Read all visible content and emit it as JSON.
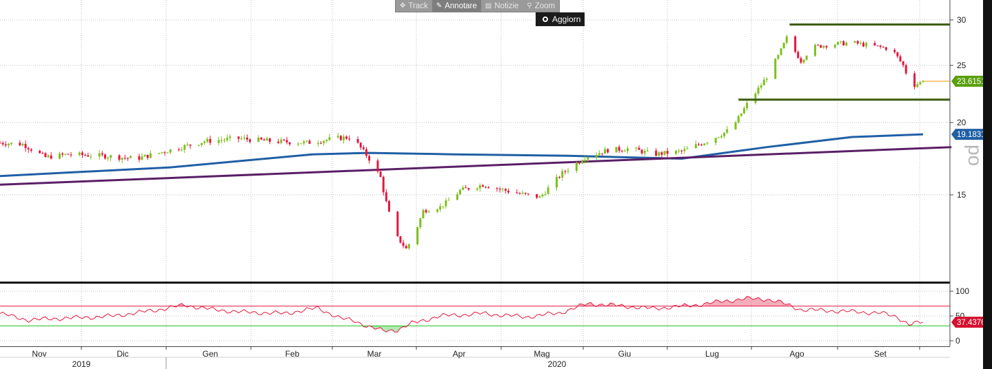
{
  "toolbar": {
    "buttons": [
      {
        "label": "Track",
        "icon": "move-icon",
        "active": false
      },
      {
        "label": "Annotare",
        "icon": "pencil-icon",
        "active": true
      },
      {
        "label": "Notizie",
        "icon": "news-icon",
        "active": false
      },
      {
        "label": "Zoom",
        "icon": "magnifier-icon",
        "active": false
      }
    ],
    "refresh_label": "Aggiorn"
  },
  "watermark": "po",
  "colors": {
    "up": "#7dc01c",
    "down": "#e3173e",
    "ma_fast": "#1f5fa5",
    "ma_slow": "#5a1e66",
    "range_lines": "#3a5a0a",
    "rsi_line": "#e3173e",
    "rsi_upper": "#e3173e",
    "rsi_lower": "#1fbf1f",
    "last_price": "#ff9a00"
  },
  "chart_data": [
    {
      "type": "candlestick",
      "y_axis_side": "right",
      "ylim": [
        9,
        31
      ],
      "y_ticks": [
        15,
        20,
        25,
        30
      ],
      "x_months": [
        "Nov",
        "Dic",
        "Gen",
        "Feb",
        "Mar",
        "Apr",
        "Mag",
        "Giu",
        "Lug",
        "Ago",
        "Set"
      ],
      "x_years": [
        {
          "label": "2019",
          "month_index": 0
        },
        {
          "label": "2020",
          "month_index": 6
        }
      ],
      "price_path": [
        [
          0,
          18.6
        ],
        [
          8,
          18.5
        ],
        [
          16,
          17.6
        ],
        [
          24,
          17.8
        ],
        [
          36,
          17.7
        ],
        [
          48,
          17.5
        ],
        [
          60,
          18.1
        ],
        [
          72,
          18.7
        ],
        [
          84,
          18.9
        ],
        [
          96,
          18.7
        ],
        [
          108,
          18.6
        ],
        [
          118,
          18.9
        ],
        [
          124,
          19.0
        ],
        [
          130,
          17.5
        ],
        [
          134,
          16.2
        ],
        [
          137,
          13.5
        ],
        [
          140,
          11.5
        ],
        [
          143,
          10.6
        ],
        [
          146,
          11.8
        ],
        [
          149,
          13.7
        ],
        [
          155,
          14.0
        ],
        [
          162,
          15.3
        ],
        [
          170,
          15.7
        ],
        [
          180,
          15.2
        ],
        [
          190,
          14.8
        ],
        [
          198,
          16.5
        ],
        [
          206,
          17.6
        ],
        [
          214,
          18.1
        ],
        [
          222,
          18.2
        ],
        [
          230,
          17.8
        ],
        [
          240,
          18.0
        ],
        [
          250,
          18.8
        ],
        [
          258,
          19.6
        ],
        [
          263,
          21.6
        ],
        [
          266,
          22.6
        ],
        [
          270,
          24.0
        ],
        [
          274,
          26.0
        ],
        [
          277,
          28.0
        ],
        [
          279,
          27.0
        ],
        [
          282,
          25.5
        ],
        [
          286,
          27.0
        ],
        [
          292,
          27.3
        ],
        [
          300,
          27.5
        ],
        [
          308,
          27.1
        ],
        [
          314,
          26.8
        ],
        [
          318,
          25.0
        ],
        [
          321,
          23.2
        ],
        [
          325,
          23.6
        ]
      ],
      "last_price": 23.6151,
      "overlays": [
        {
          "name": "ma_fast",
          "color": "#1f5fa5",
          "points": [
            [
              0,
              16.3
            ],
            [
              60,
              16.9
            ],
            [
              110,
              17.8
            ],
            [
              130,
              17.9
            ],
            [
              160,
              17.8
            ],
            [
              200,
              17.7
            ],
            [
              240,
              17.5
            ],
            [
              270,
              18.3
            ],
            [
              300,
              19.0
            ],
            [
              325,
              19.1831
            ]
          ],
          "last_value": 19.1831
        },
        {
          "name": "ma_slow",
          "color": "#5a1e66",
          "points": [
            [
              0,
              15.7
            ],
            [
              335,
              18.3
            ]
          ]
        }
      ],
      "hlines": [
        {
          "value": 29.5,
          "from_day": 278,
          "to_day": 335
        },
        {
          "value": 22.0,
          "from_day": 260,
          "to_day": 335
        }
      ]
    },
    {
      "type": "line",
      "name": "RSI",
      "ylim": [
        -5,
        108
      ],
      "y_ticks": [
        0,
        50,
        100
      ],
      "upper_threshold": 70,
      "lower_threshold": 30,
      "last_value": 37.4376,
      "points": [
        [
          0,
          55
        ],
        [
          10,
          42
        ],
        [
          20,
          45
        ],
        [
          30,
          47
        ],
        [
          40,
          50
        ],
        [
          55,
          62
        ],
        [
          65,
          72
        ],
        [
          75,
          63
        ],
        [
          85,
          58
        ],
        [
          100,
          55
        ],
        [
          112,
          66
        ],
        [
          120,
          45
        ],
        [
          125,
          40
        ],
        [
          130,
          28
        ],
        [
          135,
          20
        ],
        [
          140,
          22
        ],
        [
          145,
          35
        ],
        [
          155,
          50
        ],
        [
          170,
          55
        ],
        [
          185,
          48
        ],
        [
          197,
          56
        ],
        [
          207,
          75
        ],
        [
          215,
          72
        ],
        [
          230,
          65
        ],
        [
          245,
          72
        ],
        [
          255,
          80
        ],
        [
          263,
          85
        ],
        [
          270,
          84
        ],
        [
          275,
          77
        ],
        [
          282,
          63
        ],
        [
          295,
          60
        ],
        [
          310,
          56
        ],
        [
          316,
          48
        ],
        [
          320,
          33
        ],
        [
          325,
          37.4
        ]
      ]
    }
  ]
}
